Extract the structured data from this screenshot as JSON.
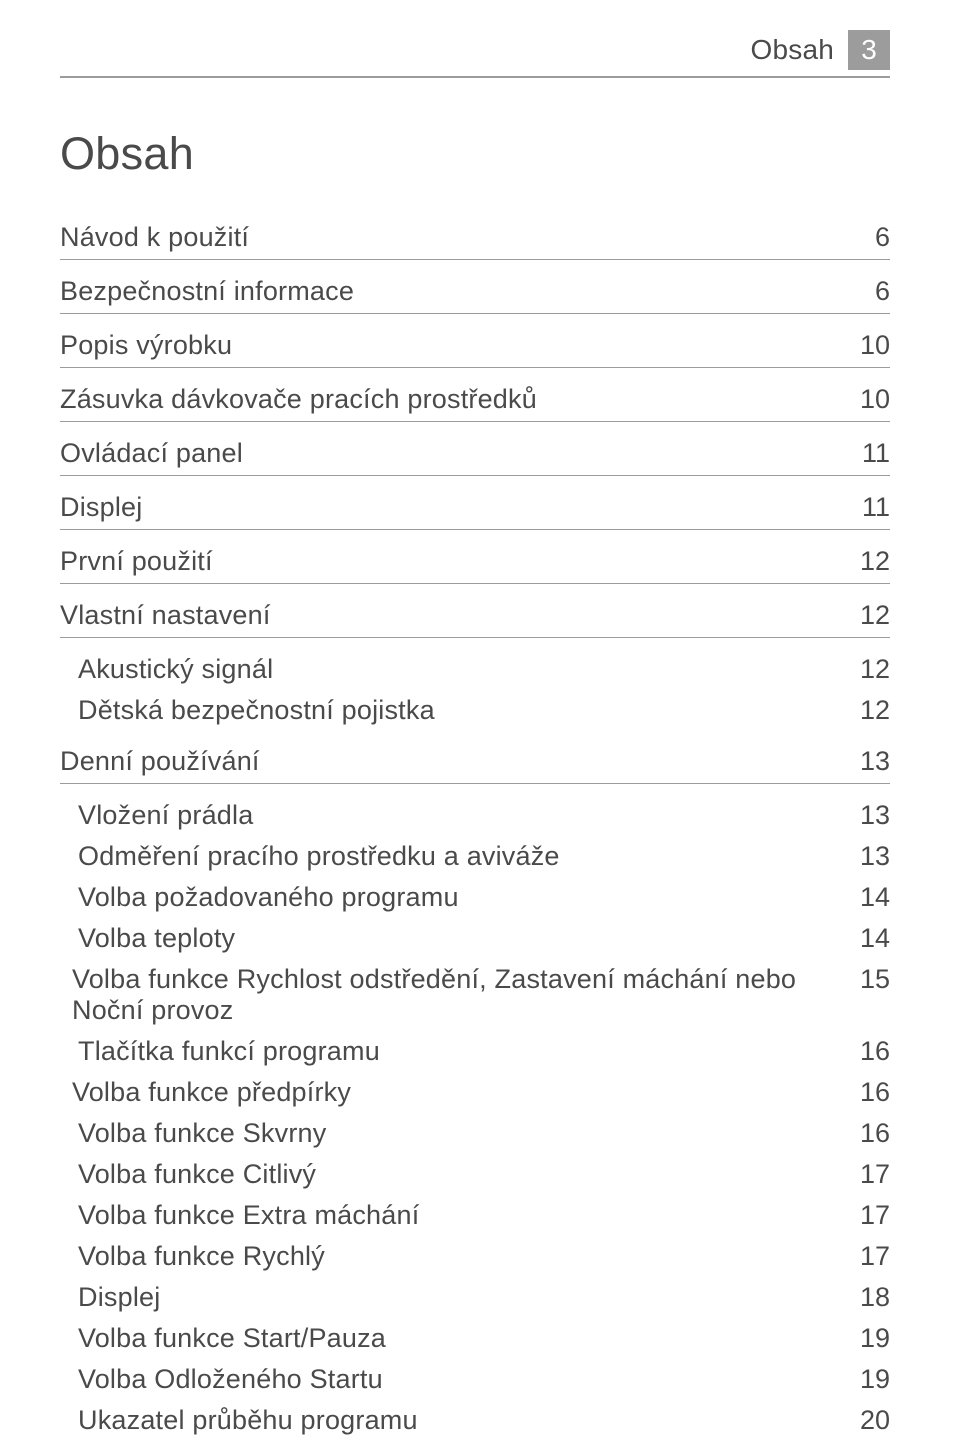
{
  "header": {
    "section_label": "Obsah",
    "page_number": "3"
  },
  "title": "Obsah",
  "toc": {
    "items": [
      {
        "label": "Návod k použití",
        "page": "6",
        "type": "section"
      },
      {
        "label": "Bezpečnostní informace",
        "page": "6",
        "type": "section"
      },
      {
        "label": "Popis výrobku",
        "page": "10",
        "type": "section"
      },
      {
        "label": "Zásuvka dávkovače pracích prostředků",
        "page": "10",
        "type": "section"
      },
      {
        "label": "Ovládací panel",
        "page": "11",
        "type": "section"
      },
      {
        "label": "Displej",
        "page": "11",
        "type": "section"
      },
      {
        "label": "První použití",
        "page": "12",
        "type": "section"
      },
      {
        "label": "Vlastní nastavení",
        "page": "12",
        "type": "section"
      },
      {
        "label": "Akustický signál",
        "page": "12",
        "type": "sub"
      },
      {
        "label": "Dětská bezpečnostní pojistka",
        "page": "12",
        "type": "sub"
      },
      {
        "label": "Denní používání",
        "page": "13",
        "type": "section"
      },
      {
        "label": "Vložení prádla",
        "page": "13",
        "type": "sub"
      },
      {
        "label": "Odměření pracího prostředku a aviváže",
        "page": "13",
        "type": "sub"
      },
      {
        "label": "Volba požadovaného programu",
        "page": "14",
        "type": "sub"
      },
      {
        "label": "Volba teploty",
        "page": "14",
        "type": "sub"
      },
      {
        "label": "Volba funkce Rychlost odstředění, Zastavení máchání nebo Noční provoz",
        "page": "15",
        "type": "sub2"
      },
      {
        "label": "Tlačítka funkcí programu",
        "page": "16",
        "type": "sub"
      },
      {
        "label": "Volba funkce předpírky",
        "page": "16",
        "type": "sub2"
      },
      {
        "label": "Volba funkce Skvrny",
        "page": "16",
        "type": "sub"
      },
      {
        "label": "Volba funkce Citlivý",
        "page": "17",
        "type": "sub"
      },
      {
        "label": "Volba funkce Extra máchání",
        "page": "17",
        "type": "sub"
      },
      {
        "label": "Volba funkce Rychlý",
        "page": "17",
        "type": "sub"
      },
      {
        "label": "Displej",
        "page": "18",
        "type": "sub"
      },
      {
        "label": "Volba funkce Start/Pauza",
        "page": "19",
        "type": "sub"
      },
      {
        "label": "Volba Odloženého Startu",
        "page": "19",
        "type": "sub"
      },
      {
        "label": "Ukazatel průběhu programu",
        "page": "20",
        "type": "sub"
      }
    ]
  },
  "style": {
    "text_color": "#4a4a4a",
    "rule_color": "#9c9c9c",
    "badge_bg": "#9c9c9c",
    "badge_fg": "#ffffff",
    "background": "#ffffff"
  }
}
